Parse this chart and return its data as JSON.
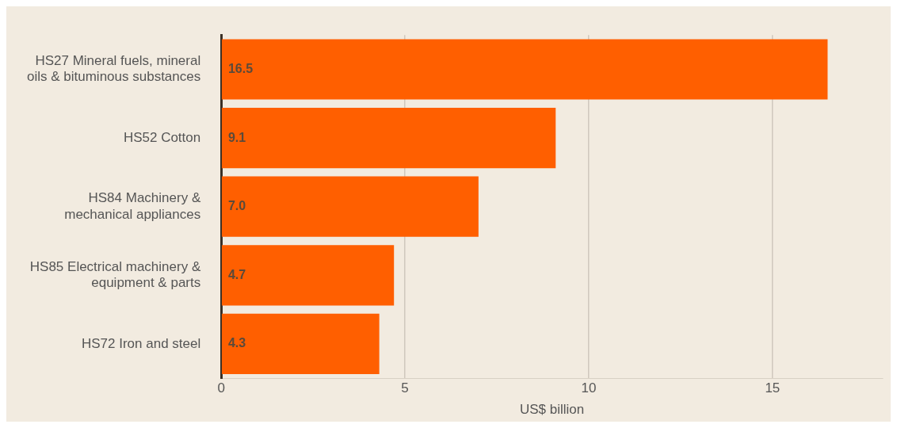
{
  "chart_data": {
    "type": "bar",
    "orientation": "horizontal",
    "xlabel": "US$ billion",
    "categories": [
      "HS27 Mineral fuels, mineral\noils & bituminous substances",
      "HS52 Cotton",
      "HS84 Machinery &\nmechanical appliances",
      "HS85 Electrical machinery &\nequipment & parts",
      "HS72 Iron and steel"
    ],
    "values": [
      16.5,
      9.1,
      7.0,
      4.7,
      4.3
    ],
    "color": "#ff5f00",
    "xlim": [
      0,
      18
    ],
    "xticks": [
      0,
      5,
      10,
      15
    ],
    "value_labels": [
      "16.5",
      "9.1",
      "7.0",
      "4.7",
      "4.3"
    ],
    "grid": "x",
    "legend": false
  }
}
